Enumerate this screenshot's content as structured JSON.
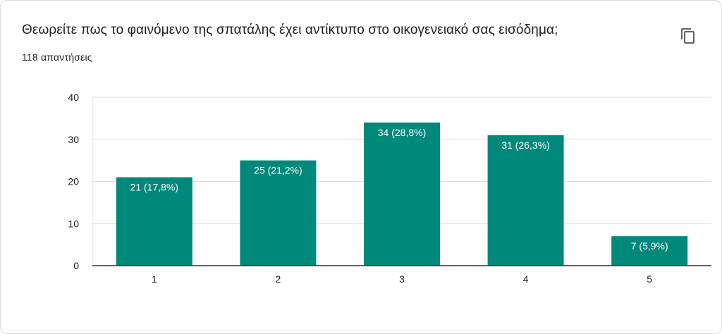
{
  "question": "Θεωρείτε πως το φαινόμενο της σπατάλης έχει αντίκτυπο στο οικογενειακό σας εισόδημα;",
  "response_count": "118 απαντήσεις",
  "copy_icon": "copy-icon",
  "colors": {
    "bar": "#00897b",
    "label": "#ffffff",
    "grid": "#e0e0e0",
    "axis": "#333333",
    "text": "#202124"
  },
  "chart_data": {
    "type": "bar",
    "categories": [
      "1",
      "2",
      "3",
      "4",
      "5"
    ],
    "values": [
      21,
      25,
      34,
      31,
      7
    ],
    "data_labels": [
      "21 (17,8%)",
      "25 (21,2%)",
      "34 (28,8%)",
      "31 (26,3%)",
      "7 (5,9%)"
    ],
    "yticks": [
      "0",
      "10",
      "20",
      "30",
      "40"
    ],
    "ylim": [
      0,
      40
    ],
    "title": "",
    "xlabel": "",
    "ylabel": "",
    "grid": true,
    "legend": "none"
  }
}
